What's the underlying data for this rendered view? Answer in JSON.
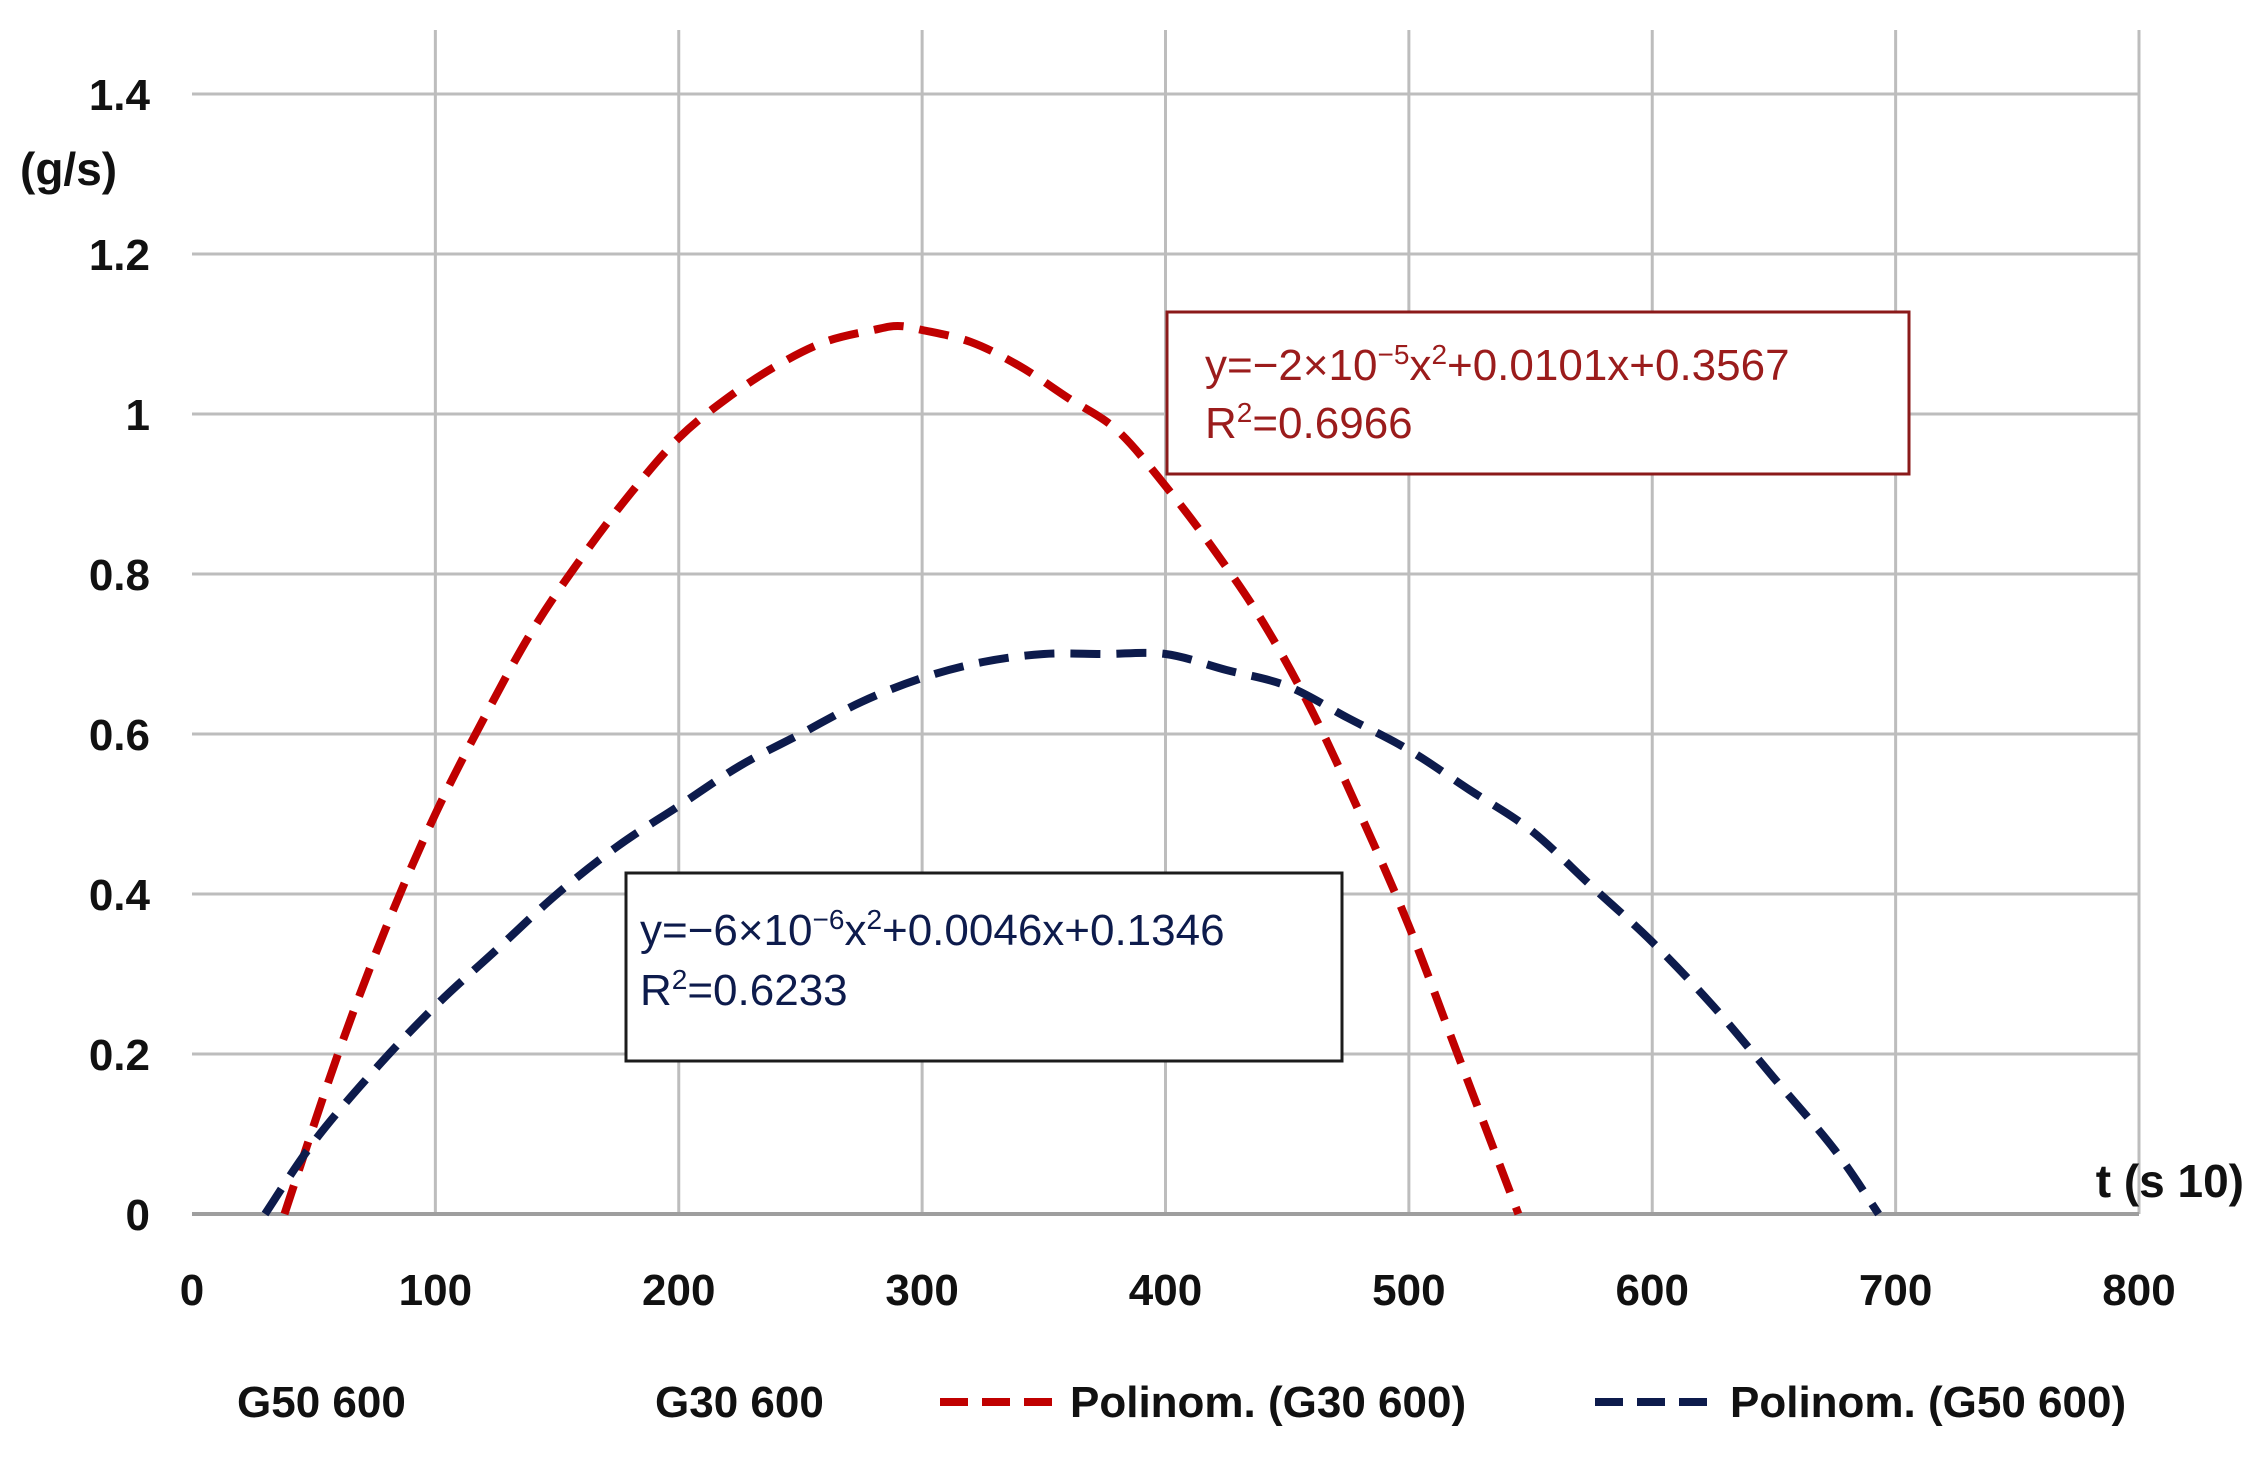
{
  "chart_data": {
    "type": "line",
    "title": "",
    "xlabel": "t (s 10)",
    "ylabel": "(g/s)",
    "xlim": [
      0,
      800
    ],
    "ylim": [
      0,
      1.4
    ],
    "x_ticks": [
      "0",
      "100",
      "200",
      "300",
      "400",
      "500",
      "600",
      "700",
      "800"
    ],
    "y_ticks": [
      "0",
      "0.2",
      "0.4",
      "0.6",
      "0.8",
      "1",
      "1.2",
      "1.4"
    ],
    "grid": true,
    "series": [
      {
        "name": "Polinom. (G30 600)",
        "color": "#c00000",
        "style": "dashed",
        "x": [
          38,
          60,
          80,
          100,
          120,
          140,
          160,
          180,
          200,
          220,
          240,
          260,
          280,
          290,
          300,
          320,
          340,
          360,
          380,
          400,
          420,
          440,
          460,
          480,
          500,
          520,
          545
        ],
        "y": [
          0.0,
          0.2,
          0.36,
          0.5,
          0.62,
          0.73,
          0.82,
          0.9,
          0.97,
          1.02,
          1.06,
          1.09,
          1.105,
          1.11,
          1.105,
          1.09,
          1.06,
          1.02,
          0.98,
          0.91,
          0.83,
          0.74,
          0.63,
          0.5,
          0.36,
          0.2,
          0.0
        ]
      },
      {
        "name": "Polinom. (G50 600)",
        "color": "#0d1b4c",
        "style": "dashed",
        "x": [
          30,
          50,
          75,
          100,
          125,
          150,
          175,
          200,
          225,
          250,
          275,
          300,
          325,
          350,
          375,
          400,
          425,
          450,
          475,
          500,
          525,
          550,
          575,
          600,
          625,
          650,
          675,
          693
        ],
        "y": [
          0.0,
          0.09,
          0.18,
          0.26,
          0.33,
          0.4,
          0.46,
          0.51,
          0.56,
          0.6,
          0.64,
          0.67,
          0.69,
          0.7,
          0.7,
          0.7,
          0.68,
          0.66,
          0.62,
          0.58,
          0.53,
          0.48,
          0.41,
          0.34,
          0.26,
          0.17,
          0.08,
          0.0
        ]
      }
    ],
    "annotations": [
      {
        "series": "Polinom. (G30 600)",
        "equation_prefix": "y=−2×10",
        "equation_exp": "−5",
        "equation_mid": "x",
        "equation_sq": "2",
        "equation_suffix": "+0.0101x+0.3567",
        "r2_prefix": "R",
        "r2_sq": "2",
        "r2_suffix": "=0.6966",
        "color": "#9b1c1c"
      },
      {
        "series": "Polinom. (G50 600)",
        "equation_prefix": "y=−6×10",
        "equation_exp": "−6",
        "equation_mid": "x",
        "equation_sq": "2",
        "equation_suffix": "+0.0046x+0.1346",
        "r2_prefix": "R",
        "r2_sq": "2",
        "r2_suffix": "=0.6233",
        "color": "#0d1b4c"
      }
    ],
    "legend": {
      "placement": "bottom",
      "items": [
        {
          "label": "G50 600",
          "marker": "none"
        },
        {
          "label": "G30 600",
          "marker": "none"
        },
        {
          "label": "Polinom. (G30 600)",
          "marker": "dashed-red"
        },
        {
          "label": "Polinom. (G50 600)",
          "marker": "dashed-navy"
        }
      ]
    }
  }
}
